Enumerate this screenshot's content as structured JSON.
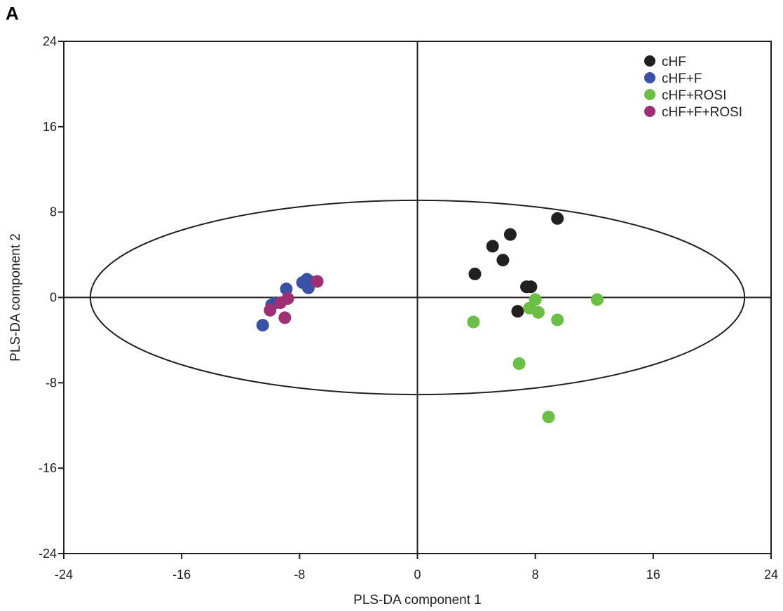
{
  "panel_label": "A",
  "chart_data": {
    "type": "scatter",
    "title": "",
    "xlabel": "PLS-DA component 1",
    "ylabel": "PLS-DA component 2",
    "xlim": [
      -24,
      24
    ],
    "ylim": [
      -24,
      24
    ],
    "xticks": [
      -24,
      -16,
      -8,
      0,
      8,
      16,
      24
    ],
    "yticks": [
      -24,
      -16,
      -8,
      0,
      8,
      16,
      24
    ],
    "grid": false,
    "legend_position": "top-right",
    "reference_lines": {
      "x": 0,
      "y": 0
    },
    "confidence_ellipse": {
      "center": [
        0,
        0
      ],
      "x_radius": 22.2,
      "y_radius": 9.1
    },
    "series": [
      {
        "name": "cHF",
        "color": "#231f20",
        "points": [
          [
            9.5,
            7.4
          ],
          [
            6.3,
            5.9
          ],
          [
            5.1,
            4.8
          ],
          [
            5.8,
            3.5
          ],
          [
            3.9,
            2.2
          ],
          [
            7.4,
            1.0
          ],
          [
            7.7,
            1.0
          ],
          [
            6.8,
            -1.3
          ]
        ]
      },
      {
        "name": "cHF+F",
        "color": "#3a52a5",
        "points": [
          [
            -7.5,
            1.7
          ],
          [
            -7.8,
            1.4
          ],
          [
            -7.3,
            1.5
          ],
          [
            -7.4,
            0.9
          ],
          [
            -8.9,
            0.8
          ],
          [
            -9.6,
            -0.5
          ],
          [
            -9.9,
            -0.7
          ],
          [
            -10.5,
            -2.6
          ]
        ]
      },
      {
        "name": "cHF+ROSI",
        "color": "#6bbf44",
        "points": [
          [
            12.2,
            -0.2
          ],
          [
            8.0,
            -0.2
          ],
          [
            7.6,
            -1.0
          ],
          [
            8.2,
            -1.4
          ],
          [
            9.5,
            -2.1
          ],
          [
            3.8,
            -2.3
          ],
          [
            6.9,
            -6.2
          ],
          [
            8.9,
            -11.2
          ]
        ]
      },
      {
        "name": "cHF+F+ROSI",
        "color": "#9e2f75",
        "points": [
          [
            -6.8,
            1.5
          ],
          [
            -8.8,
            -0.1
          ],
          [
            -9.3,
            -0.5
          ],
          [
            -10.0,
            -1.2
          ],
          [
            -9.0,
            -1.9
          ]
        ]
      }
    ]
  }
}
